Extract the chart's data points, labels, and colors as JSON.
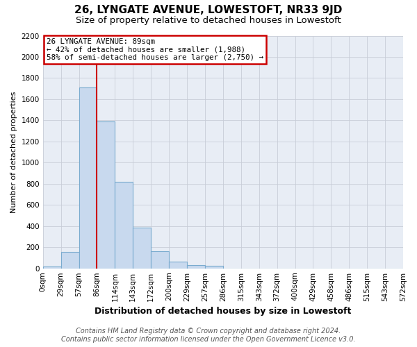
{
  "title": "26, LYNGATE AVENUE, LOWESTOFT, NR33 9JD",
  "subtitle": "Size of property relative to detached houses in Lowestoft",
  "xlabel": "Distribution of detached houses by size in Lowestoft",
  "ylabel": "Number of detached properties",
  "bin_labels": [
    "0sqm",
    "29sqm",
    "57sqm",
    "86sqm",
    "114sqm",
    "143sqm",
    "172sqm",
    "200sqm",
    "229sqm",
    "257sqm",
    "286sqm",
    "315sqm",
    "343sqm",
    "372sqm",
    "400sqm",
    "429sqm",
    "458sqm",
    "486sqm",
    "515sqm",
    "543sqm",
    "572sqm"
  ],
  "bar_values": [
    15,
    155,
    1710,
    1390,
    820,
    385,
    160,
    65,
    30,
    25,
    0,
    0,
    0,
    0,
    0,
    0,
    0,
    0,
    0,
    0,
    0
  ],
  "bar_color": "#c8d9ee",
  "bar_edge_color": "#7aabcf",
  "annotation_title": "26 LYNGATE AVENUE: 89sqm",
  "annotation_line1": "← 42% of detached houses are smaller (1,988)",
  "annotation_line2": "58% of semi-detached houses are larger (2,750) →",
  "vline_x_index": 3,
  "ylim": [
    0,
    2200
  ],
  "yticks": [
    0,
    200,
    400,
    600,
    800,
    1000,
    1200,
    1400,
    1600,
    1800,
    2000,
    2200
  ],
  "footer_line1": "Contains HM Land Registry data © Crown copyright and database right 2024.",
  "footer_line2": "Contains public sector information licensed under the Open Government Licence v3.0.",
  "bg_color": "#ffffff",
  "plot_bg_color": "#e8edf5",
  "grid_color": "#c8cdd8",
  "title_fontsize": 11,
  "subtitle_fontsize": 9.5,
  "xlabel_fontsize": 9,
  "ylabel_fontsize": 8,
  "tick_fontsize": 7.5,
  "footer_fontsize": 7
}
